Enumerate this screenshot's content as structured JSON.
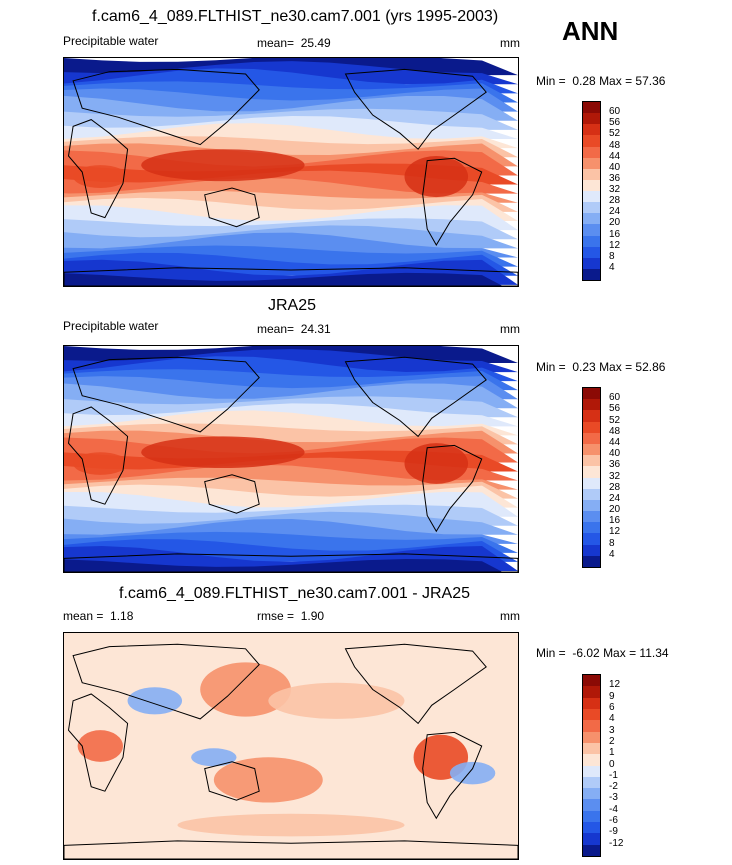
{
  "panel_label": "ANN",
  "chart_data": [
    {
      "type": "heatmap",
      "title": "f.cam6_4_089.FLTHIST_ne30.cam7.001 (yrs 1995-2003)",
      "variable": "Precipitable water",
      "units": "mm",
      "stat_label": "mean=",
      "stat_value": "25.49",
      "min_label": "Min =",
      "min_value": "0.28",
      "max_label": "Max =",
      "max_value": "57.36",
      "levels": [
        "4",
        "8",
        "12",
        "16",
        "20",
        "24",
        "28",
        "32",
        "36",
        "40",
        "44",
        "48",
        "52",
        "56",
        "60"
      ],
      "colors": [
        "#0a1a8c",
        "#1637cf",
        "#2457e6",
        "#3a74ec",
        "#5b8ef0",
        "#85aef4",
        "#b0cbf8",
        "#dfe9fb",
        "#fde6d6",
        "#fbc3a6",
        "#f6916c",
        "#f26a47",
        "#e94a26",
        "#d63015",
        "#b01808",
        "#8b0a05"
      ]
    },
    {
      "type": "heatmap",
      "title": "JRA25",
      "variable": "Precipitable water",
      "units": "mm",
      "stat_label": "mean=",
      "stat_value": "24.31",
      "min_label": "Min =",
      "min_value": "0.23",
      "max_label": "Max =",
      "max_value": "52.86",
      "levels": [
        "4",
        "8",
        "12",
        "16",
        "20",
        "24",
        "28",
        "32",
        "36",
        "40",
        "44",
        "48",
        "52",
        "56",
        "60"
      ],
      "colors": [
        "#0a1a8c",
        "#1637cf",
        "#2457e6",
        "#3a74ec",
        "#5b8ef0",
        "#85aef4",
        "#b0cbf8",
        "#dfe9fb",
        "#fde6d6",
        "#fbc3a6",
        "#f6916c",
        "#f26a47",
        "#e94a26",
        "#d63015",
        "#b01808",
        "#8b0a05"
      ]
    },
    {
      "type": "heatmap",
      "title": "f.cam6_4_089.FLTHIST_ne30.cam7.001 - JRA25",
      "variable": "",
      "units": "mm",
      "stat_label": "mean =",
      "stat_value": "1.18",
      "rmse_label": "rmse =",
      "rmse_value": "1.90",
      "min_label": "Min =",
      "min_value": "-6.02",
      "max_label": "Max =",
      "max_value": "11.34",
      "levels": [
        "-12",
        "-9",
        "-6",
        "-4",
        "-3",
        "-2",
        "-1",
        "0",
        "1",
        "2",
        "3",
        "4",
        "6",
        "9",
        "12"
      ],
      "colors": [
        "#0a1a8c",
        "#1637cf",
        "#2457e6",
        "#3a74ec",
        "#5b8ef0",
        "#85aef4",
        "#b0cbf8",
        "#dfe9fb",
        "#fde6d6",
        "#fbc3a6",
        "#f6916c",
        "#f26a47",
        "#e94a26",
        "#d63015",
        "#b01808",
        "#8b0a05"
      ]
    }
  ]
}
